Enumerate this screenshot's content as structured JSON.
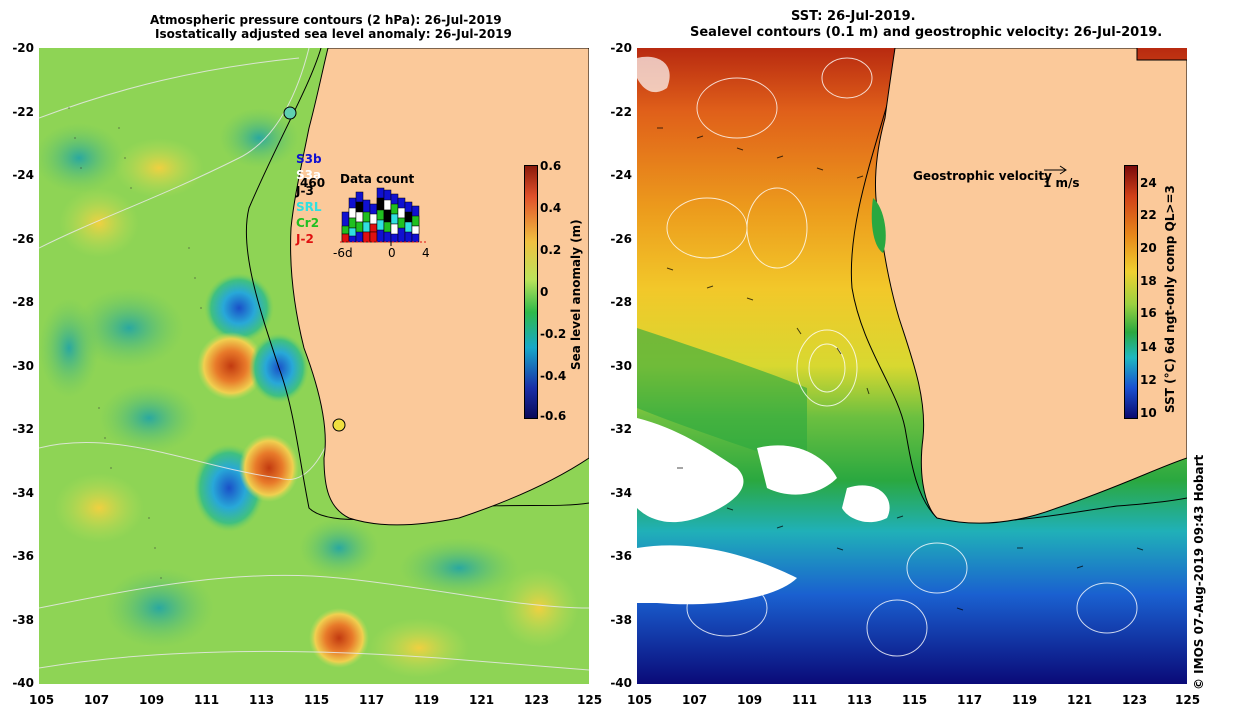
{
  "left_panel": {
    "title_line1": "Atmospheric pressure contours (2 hPa): 26-Jul-2019",
    "title_line2": "Isostatically adjusted sea level anomaly: 26-Jul-2019",
    "colorbar": {
      "label": "Sea level anomaly (m)",
      "ticks": [
        "0.6",
        "0.4",
        "0.2",
        "0",
        "-0.2",
        "-0.4",
        "-0.6"
      ],
      "colors": [
        "#8b1a0a",
        "#e0502a",
        "#f0c040",
        "#bce35b",
        "#2fb94a",
        "#18a8c8",
        "#1a2fa8",
        "#0a0a5a"
      ]
    },
    "satellites": [
      {
        "name": "S3b",
        "color": "#1010d0"
      },
      {
        "name": "S3a",
        "color": "#ffffff"
      },
      {
        "name": "J-3",
        "color": "#000000"
      },
      {
        "name": "SRL",
        "color": "#30e0e0"
      },
      {
        "name": "Cr2",
        "color": "#20c020"
      },
      {
        "name": "J-2",
        "color": "#e01010"
      }
    ],
    "data_count": {
      "title": "Data count",
      "value": "460",
      "xlabels": [
        "-6d",
        "0",
        "4"
      ]
    }
  },
  "right_panel": {
    "title_line1": "SST: 26-Jul-2019.",
    "title_line2": "Sealevel contours (0.1 m) and geostrophic velocity: 26-Jul-2019.",
    "geostrophic_label": "Geostrophic velocity",
    "scale_label": "1 m/s",
    "colorbar": {
      "label": "SST (°C) 6d ngt-only comp QL>=3",
      "ticks": [
        "24",
        "22",
        "20",
        "18",
        "16",
        "14",
        "12",
        "10"
      ],
      "colors": [
        "#7a0a0a",
        "#d04018",
        "#e88a1a",
        "#f0d030",
        "#9ad040",
        "#2aa840",
        "#20b8c0",
        "#1a50d0",
        "#0a0a70"
      ]
    }
  },
  "x_axis_labels": [
    "105",
    "107",
    "109",
    "111",
    "113",
    "115",
    "117",
    "119",
    "121",
    "123",
    "125"
  ],
  "y_axis_labels": [
    "-20",
    "-22",
    "-24",
    "-26",
    "-28",
    "-30",
    "-32",
    "-34",
    "-36",
    "-38",
    "-40"
  ],
  "credit": "© IMOS 07-Aug-2019 09:43 Hobart",
  "colors": {
    "land": "#fbc99a",
    "coast": "#000000"
  }
}
